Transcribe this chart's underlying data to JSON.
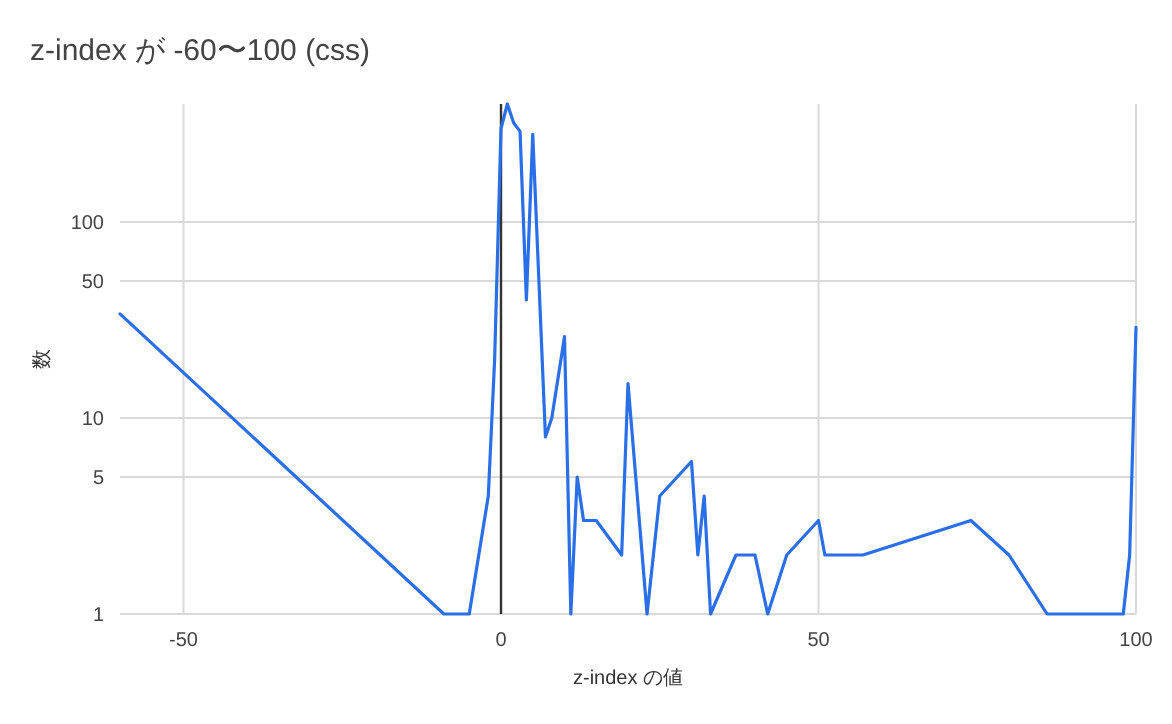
{
  "chart_data": {
    "type": "line",
    "title": "z-index が -60〜100 (css)",
    "xlabel": "z-index の値",
    "ylabel": "数",
    "x": [
      -60,
      -9,
      -5,
      -2,
      -1,
      0,
      1,
      2,
      3,
      4,
      5,
      7,
      8,
      10,
      11,
      12,
      13,
      15,
      19,
      20,
      23,
      25,
      30,
      31,
      32,
      33,
      37,
      40,
      42,
      45,
      50,
      51,
      57,
      74,
      80,
      86,
      98,
      99,
      100
    ],
    "series": [
      {
        "color": "#2a6ee8",
        "values": [
          34,
          1,
          1,
          4,
          20,
          300,
          400,
          320,
          290,
          40,
          280,
          8,
          10,
          26,
          1,
          5,
          3,
          3,
          2,
          15,
          1,
          4,
          6,
          2,
          4,
          1,
          2,
          2,
          1,
          2,
          3,
          2,
          2,
          3,
          2,
          1,
          1,
          2,
          29
        ]
      }
    ],
    "log": "y",
    "xlim": [
      -60,
      100
    ],
    "xticks": [
      -50,
      0,
      50,
      100
    ],
    "ylim": [
      1,
      400
    ],
    "yticks": [
      1,
      5,
      10,
      50,
      100
    ],
    "grid": true,
    "marker": "none",
    "line_style": "solid",
    "ref_lines": [
      {
        "axis": "x",
        "value": 0,
        "color": "#333333"
      }
    ]
  }
}
